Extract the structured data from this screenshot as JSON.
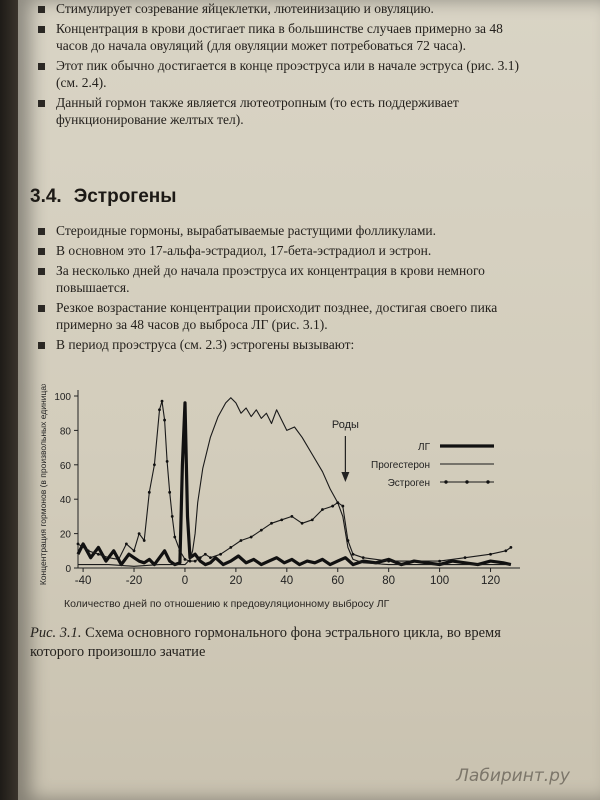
{
  "top_bullets": [
    "Стимулирует созревание яйцеклетки, лютеинизацию и овуляцию.",
    "Концентрация в крови достигает пика в большинстве случаев примерно за 48 часов до начала овуляций (для овуляции может потребоваться 72 часа).",
    "Этот пик обычно достигается в конце проэструса или в начале эструса (рис. 3.1) (см. 2.4).",
    "Данный гормон также является лютеотропным (то есть поддерживает функционирование желтых тел)."
  ],
  "section": {
    "number": "3.4.",
    "title": "Эстрогены"
  },
  "estrogen_bullets": [
    "Стероидные гормоны, вырабатываемые растущими фолликулами.",
    "В основном это 17-альфа-эстрадиол, 17-бета-эстрадиол и эстрон.",
    "За несколько дней до начала проэструса их концентрация в крови немного повышается.",
    "Резкое возрастание концентрации происходит позднее, достигая своего пика примерно за 48 часов до выброса ЛГ (рис. 3.1).",
    "В период проэструса (см. 2.3) эстрогены вызывают:"
  ],
  "chart_data": {
    "type": "line",
    "ylabel": "Концентрация гормонов (в произвольных единицах)",
    "xlabel": "Количество дней по отношению к предовуляционному выбросу ЛГ",
    "xlim": [
      -42,
      130
    ],
    "ylim": [
      0,
      100
    ],
    "xticks": [
      "-40",
      "-20",
      "0",
      "20",
      "40",
      "60",
      "80",
      "100",
      "120"
    ],
    "yticks": [
      "0",
      "20",
      "40",
      "60",
      "80",
      "100"
    ],
    "annotation": {
      "text": "Роды",
      "x": 63
    },
    "series": [
      {
        "name": "ЛГ",
        "style": "thick",
        "x": [
          -42,
          -40,
          -37,
          -34,
          -31,
          -28,
          -25,
          -22,
          -20,
          -18,
          -16,
          -14,
          -12,
          -10,
          -8,
          -6,
          -4,
          -2,
          -1,
          0,
          1,
          2,
          4,
          6,
          8,
          10,
          12,
          15,
          18,
          21,
          24,
          27,
          30,
          33,
          36,
          39,
          42,
          45,
          48,
          51,
          54,
          57,
          60,
          63,
          66,
          70,
          75,
          80,
          85,
          90,
          95,
          100,
          105,
          110,
          115,
          120,
          125,
          128
        ],
        "y": [
          8,
          14,
          6,
          12,
          4,
          10,
          2,
          8,
          6,
          4,
          3,
          5,
          2,
          6,
          10,
          4,
          2,
          3,
          60,
          96,
          30,
          6,
          8,
          4,
          2,
          3,
          6,
          2,
          4,
          7,
          3,
          5,
          2,
          4,
          6,
          3,
          5,
          2,
          4,
          3,
          5,
          2,
          4,
          6,
          2,
          4,
          3,
          5,
          2,
          4,
          3,
          2,
          4,
          3,
          2,
          4,
          3,
          2
        ]
      },
      {
        "name": "Прогестерон",
        "style": "thin",
        "x": [
          -42,
          -30,
          -20,
          -10,
          -5,
          0,
          2,
          3,
          4,
          5,
          7,
          10,
          13,
          16,
          18,
          20,
          22,
          24,
          26,
          28,
          30,
          32,
          34,
          36,
          38,
          40,
          43,
          46,
          50,
          54,
          57,
          60,
          62,
          64,
          66,
          70,
          80,
          90,
          100,
          110,
          120,
          128
        ],
        "y": [
          2,
          2,
          1,
          2,
          2,
          2,
          5,
          10,
          20,
          38,
          58,
          76,
          88,
          96,
          99,
          96,
          90,
          93,
          88,
          92,
          87,
          90,
          84,
          92,
          86,
          80,
          82,
          76,
          66,
          56,
          46,
          38,
          30,
          12,
          5,
          3,
          2,
          2,
          2,
          2,
          2,
          2
        ]
      },
      {
        "name": "Эстроген",
        "style": "dotted",
        "x": [
          -42,
          -38,
          -34,
          -30,
          -26,
          -23,
          -20,
          -18,
          -16,
          -14,
          -12,
          -10,
          -9,
          -8,
          -7,
          -6,
          -5,
          -4,
          -2,
          0,
          2,
          4,
          6,
          8,
          10,
          14,
          18,
          22,
          26,
          30,
          34,
          38,
          42,
          46,
          50,
          54,
          58,
          60,
          62,
          64,
          66,
          70,
          80,
          90,
          100,
          110,
          120,
          126,
          128
        ],
        "y": [
          14,
          10,
          8,
          6,
          5,
          14,
          10,
          20,
          16,
          44,
          60,
          92,
          97,
          86,
          62,
          44,
          30,
          18,
          10,
          5,
          4,
          4,
          6,
          8,
          6,
          8,
          12,
          16,
          18,
          22,
          26,
          28,
          30,
          26,
          28,
          34,
          36,
          38,
          36,
          16,
          8,
          6,
          4,
          4,
          4,
          6,
          8,
          10,
          12
        ]
      }
    ]
  },
  "caption": {
    "label": "Рис. 3.1.",
    "text": "Схема основного гормонального фона эстрального цикла, во время которого произошло зачатие"
  },
  "watermark": "Лабиринт.ру"
}
